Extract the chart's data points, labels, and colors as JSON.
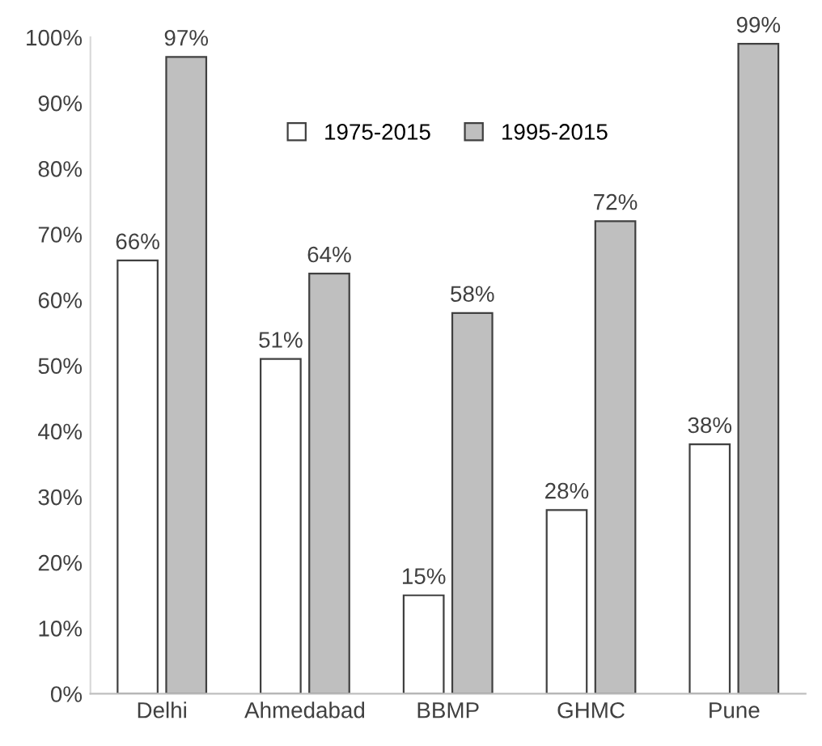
{
  "chart_data": {
    "type": "bar",
    "categories": [
      "Delhi",
      "Ahmedabad",
      "BBMP",
      "GHMC",
      "Pune"
    ],
    "series": [
      {
        "name": "1975-2015",
        "color": "#ffffff",
        "values": [
          66,
          51,
          15,
          28,
          38
        ],
        "value_labels": [
          "66%",
          "51%",
          "15%",
          "28%",
          "38%"
        ]
      },
      {
        "name": "1995-2015",
        "color": "#bfbfbf",
        "values": [
          97,
          64,
          58,
          72,
          99
        ],
        "value_labels": [
          "97%",
          "64%",
          "58%",
          "72%",
          "99%"
        ]
      }
    ],
    "ylim": [
      0,
      100
    ],
    "yticks": [
      {
        "value": 0,
        "label": "0%"
      },
      {
        "value": 10,
        "label": "10%"
      },
      {
        "value": 20,
        "label": "20%"
      },
      {
        "value": 30,
        "label": "30%"
      },
      {
        "value": 40,
        "label": "40%"
      },
      {
        "value": 50,
        "label": "50%"
      },
      {
        "value": 60,
        "label": "60%"
      },
      {
        "value": 70,
        "label": "70%"
      },
      {
        "value": 80,
        "label": "80%"
      },
      {
        "value": 90,
        "label": "90%"
      },
      {
        "value": 100,
        "label": "100%"
      }
    ],
    "legend": "top",
    "grid": false
  }
}
